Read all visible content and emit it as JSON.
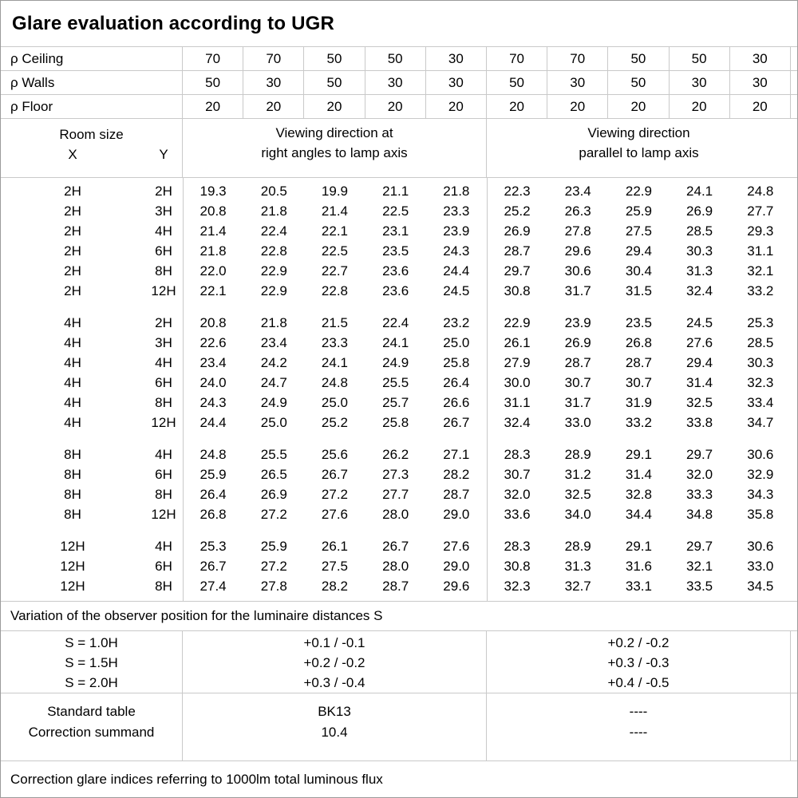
{
  "title": "Glare evaluation according to UGR",
  "reflectance": {
    "rows": [
      {
        "label": "ρ Ceiling",
        "values": [
          "70",
          "70",
          "50",
          "50",
          "30",
          "70",
          "70",
          "50",
          "50",
          "30"
        ]
      },
      {
        "label": "ρ Walls",
        "values": [
          "50",
          "30",
          "50",
          "30",
          "30",
          "50",
          "30",
          "50",
          "30",
          "30"
        ]
      },
      {
        "label": "ρ Floor",
        "values": [
          "20",
          "20",
          "20",
          "20",
          "20",
          "20",
          "20",
          "20",
          "20",
          "20"
        ]
      }
    ]
  },
  "headers": {
    "room_size": "Room size",
    "x": "X",
    "y": "Y",
    "group1_line1": "Viewing direction at",
    "group1_line2": "right angles to lamp axis",
    "group2_line1": "Viewing direction",
    "group2_line2": "parallel to lamp axis"
  },
  "ugr_table": {
    "groups": [
      {
        "rows": [
          {
            "x": "2H",
            "y": "2H",
            "values": [
              "19.3",
              "20.5",
              "19.9",
              "21.1",
              "21.8",
              "22.3",
              "23.4",
              "22.9",
              "24.1",
              "24.8"
            ]
          },
          {
            "x": "2H",
            "y": "3H",
            "values": [
              "20.8",
              "21.8",
              "21.4",
              "22.5",
              "23.3",
              "25.2",
              "26.3",
              "25.9",
              "26.9",
              "27.7"
            ]
          },
          {
            "x": "2H",
            "y": "4H",
            "values": [
              "21.4",
              "22.4",
              "22.1",
              "23.1",
              "23.9",
              "26.9",
              "27.8",
              "27.5",
              "28.5",
              "29.3"
            ]
          },
          {
            "x": "2H",
            "y": "6H",
            "values": [
              "21.8",
              "22.8",
              "22.5",
              "23.5",
              "24.3",
              "28.7",
              "29.6",
              "29.4",
              "30.3",
              "31.1"
            ]
          },
          {
            "x": "2H",
            "y": "8H",
            "values": [
              "22.0",
              "22.9",
              "22.7",
              "23.6",
              "24.4",
              "29.7",
              "30.6",
              "30.4",
              "31.3",
              "32.1"
            ]
          },
          {
            "x": "2H",
            "y": "12H",
            "values": [
              "22.1",
              "22.9",
              "22.8",
              "23.6",
              "24.5",
              "30.8",
              "31.7",
              "31.5",
              "32.4",
              "33.2"
            ]
          }
        ]
      },
      {
        "rows": [
          {
            "x": "4H",
            "y": "2H",
            "values": [
              "20.8",
              "21.8",
              "21.5",
              "22.4",
              "23.2",
              "22.9",
              "23.9",
              "23.5",
              "24.5",
              "25.3"
            ]
          },
          {
            "x": "4H",
            "y": "3H",
            "values": [
              "22.6",
              "23.4",
              "23.3",
              "24.1",
              "25.0",
              "26.1",
              "26.9",
              "26.8",
              "27.6",
              "28.5"
            ]
          },
          {
            "x": "4H",
            "y": "4H",
            "values": [
              "23.4",
              "24.2",
              "24.1",
              "24.9",
              "25.8",
              "27.9",
              "28.7",
              "28.7",
              "29.4",
              "30.3"
            ]
          },
          {
            "x": "4H",
            "y": "6H",
            "values": [
              "24.0",
              "24.7",
              "24.8",
              "25.5",
              "26.4",
              "30.0",
              "30.7",
              "30.7",
              "31.4",
              "32.3"
            ]
          },
          {
            "x": "4H",
            "y": "8H",
            "values": [
              "24.3",
              "24.9",
              "25.0",
              "25.7",
              "26.6",
              "31.1",
              "31.7",
              "31.9",
              "32.5",
              "33.4"
            ]
          },
          {
            "x": "4H",
            "y": "12H",
            "values": [
              "24.4",
              "25.0",
              "25.2",
              "25.8",
              "26.7",
              "32.4",
              "33.0",
              "33.2",
              "33.8",
              "34.7"
            ]
          }
        ]
      },
      {
        "rows": [
          {
            "x": "8H",
            "y": "4H",
            "values": [
              "24.8",
              "25.5",
              "25.6",
              "26.2",
              "27.1",
              "28.3",
              "28.9",
              "29.1",
              "29.7",
              "30.6"
            ]
          },
          {
            "x": "8H",
            "y": "6H",
            "values": [
              "25.9",
              "26.5",
              "26.7",
              "27.3",
              "28.2",
              "30.7",
              "31.2",
              "31.4",
              "32.0",
              "32.9"
            ]
          },
          {
            "x": "8H",
            "y": "8H",
            "values": [
              "26.4",
              "26.9",
              "27.2",
              "27.7",
              "28.7",
              "32.0",
              "32.5",
              "32.8",
              "33.3",
              "34.3"
            ]
          },
          {
            "x": "8H",
            "y": "12H",
            "values": [
              "26.8",
              "27.2",
              "27.6",
              "28.0",
              "29.0",
              "33.6",
              "34.0",
              "34.4",
              "34.8",
              "35.8"
            ]
          }
        ]
      },
      {
        "rows": [
          {
            "x": "12H",
            "y": "4H",
            "values": [
              "25.3",
              "25.9",
              "26.1",
              "26.7",
              "27.6",
              "28.3",
              "28.9",
              "29.1",
              "29.7",
              "30.6"
            ]
          },
          {
            "x": "12H",
            "y": "6H",
            "values": [
              "26.7",
              "27.2",
              "27.5",
              "28.0",
              "29.0",
              "30.8",
              "31.3",
              "31.6",
              "32.1",
              "33.0"
            ]
          },
          {
            "x": "12H",
            "y": "8H",
            "values": [
              "27.4",
              "27.8",
              "28.2",
              "28.7",
              "29.6",
              "32.3",
              "32.7",
              "33.1",
              "33.5",
              "34.5"
            ]
          }
        ]
      }
    ]
  },
  "variation": {
    "note": "Variation of the observer position for the luminaire distances S",
    "rows": [
      {
        "s": "S = 1.0H",
        "right_angles": "+0.1 / -0.1",
        "parallel": "+0.2 / -0.2"
      },
      {
        "s": "S = 1.5H",
        "right_angles": "+0.2 / -0.2",
        "parallel": "+0.3 / -0.3"
      },
      {
        "s": "S = 2.0H",
        "right_angles": "+0.3 / -0.4",
        "parallel": "+0.4 / -0.5"
      }
    ]
  },
  "summary": {
    "rows": [
      {
        "label": "Standard table",
        "right_angles": "BK13",
        "parallel": "----"
      },
      {
        "label": "Correction summand",
        "right_angles": "10.4",
        "parallel": "----"
      }
    ]
  },
  "footer_note": "Correction glare indices referring to 1000lm total luminous flux"
}
